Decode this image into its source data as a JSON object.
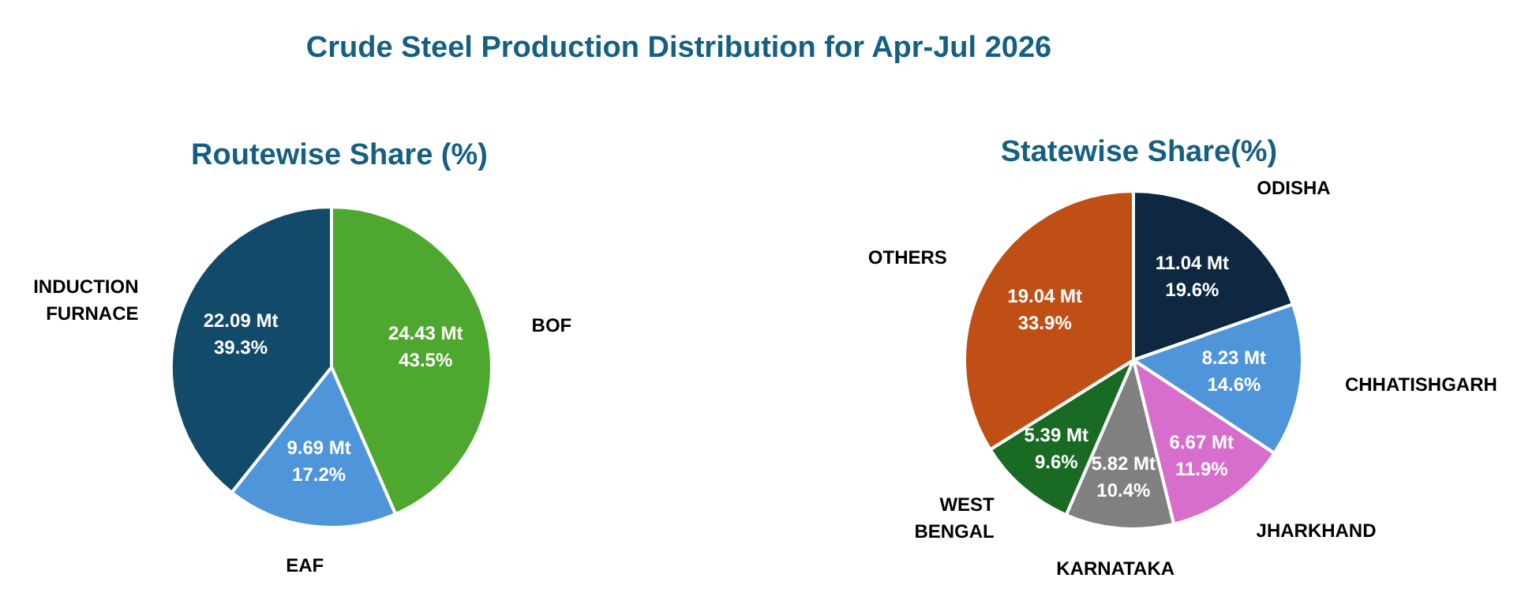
{
  "chart_data": [
    {
      "type": "pie",
      "title": "Crude Steel Production Distribution for Apr-Jul 2026",
      "subtitle": "Routewise Share (%)",
      "categories": [
        "BOF",
        "EAF",
        "INDUCTION FURNACE"
      ],
      "values": [
        24.43,
        9.69,
        22.09
      ],
      "colors": [
        "#4ea72e",
        "#4e95d9",
        "#124b6a"
      ],
      "value_labels": [
        "24.43 Mt\n43.5%",
        "9.69 Mt\n17.2%",
        "22.09 Mt\n39.3%"
      ]
    },
    {
      "type": "pie",
      "subtitle": "Statewise Share(%)",
      "categories": [
        "ODISHA",
        "CHHATISHGARH",
        "JHARKHAND",
        "KARNATAKA",
        "WEST BENGAL",
        "OTHERS"
      ],
      "values": [
        11.04,
        8.23,
        6.67,
        5.82,
        5.39,
        19.04
      ],
      "colors": [
        "#0e2841",
        "#4e95d9",
        "#d86ecc",
        "#808080",
        "#196b24",
        "#c04f15"
      ],
      "value_labels": [
        "11.04 Mt\n19.6%",
        "8.23 Mt\n14.6%",
        "6.67 Mt\n11.9%",
        "5.82 Mt\n10.4%",
        "5.39 Mt\n9.6%",
        "19.04 Mt\n33.9%"
      ]
    }
  ]
}
